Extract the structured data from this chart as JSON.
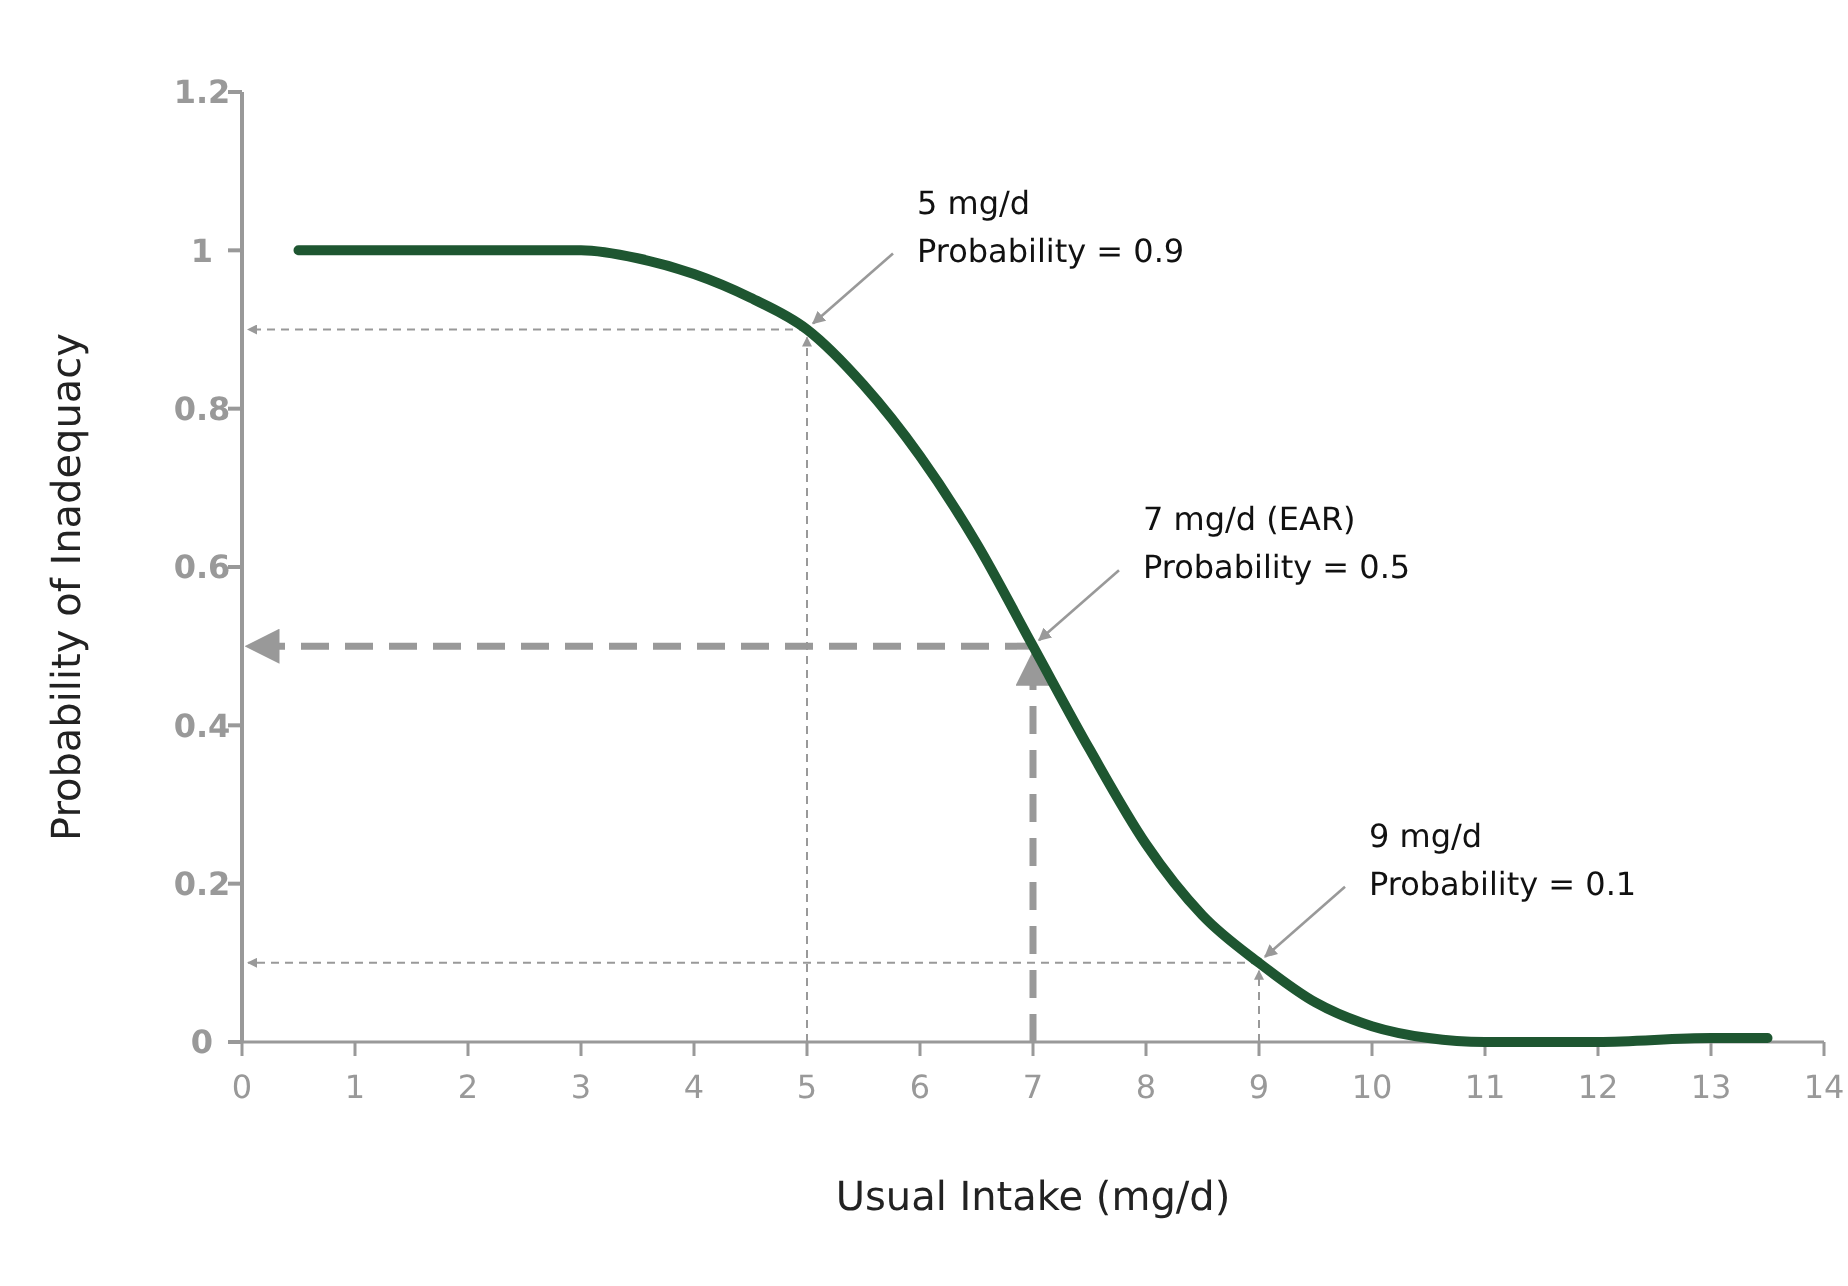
{
  "chart_data": {
    "type": "line",
    "xlabel": "Usual Intake (mg/d)",
    "ylabel": "Probability of Inadequacy",
    "xlim": [
      0,
      14
    ],
    "xticks": [
      0,
      1,
      2,
      3,
      4,
      5,
      6,
      7,
      8,
      9,
      10,
      11,
      12,
      13,
      14
    ],
    "ylim": [
      0,
      1.2
    ],
    "yticks": [
      0,
      0.2,
      0.4,
      0.6,
      0.8,
      1,
      1.2
    ],
    "series": [
      {
        "color": "#1e5631",
        "x": [
          0.5,
          1,
          2,
          3,
          3.5,
          4,
          4.5,
          5,
          5.5,
          6,
          6.5,
          7,
          7.5,
          8,
          8.5,
          9,
          9.5,
          10,
          10.5,
          11,
          12,
          13,
          13.5
        ],
        "values": [
          1,
          1,
          1,
          1,
          0.99,
          0.97,
          0.94,
          0.9,
          0.83,
          0.74,
          0.63,
          0.5,
          0.37,
          0.25,
          0.16,
          0.1,
          0.05,
          0.02,
          0.005,
          0,
          0,
          0.005,
          0.005
        ]
      }
    ],
    "annotations": [
      {
        "text": "5 mg/d\nProbability = 0.9",
        "x": 5,
        "y": 0.9
      },
      {
        "text": "7 mg/d (EAR)\nProbability = 0.5",
        "x": 7,
        "y": 0.5
      },
      {
        "text": "9 mg/d\nProbability = 0.1",
        "x": 9,
        "y": 0.1
      }
    ],
    "marker": "none",
    "line_style": "solid"
  }
}
